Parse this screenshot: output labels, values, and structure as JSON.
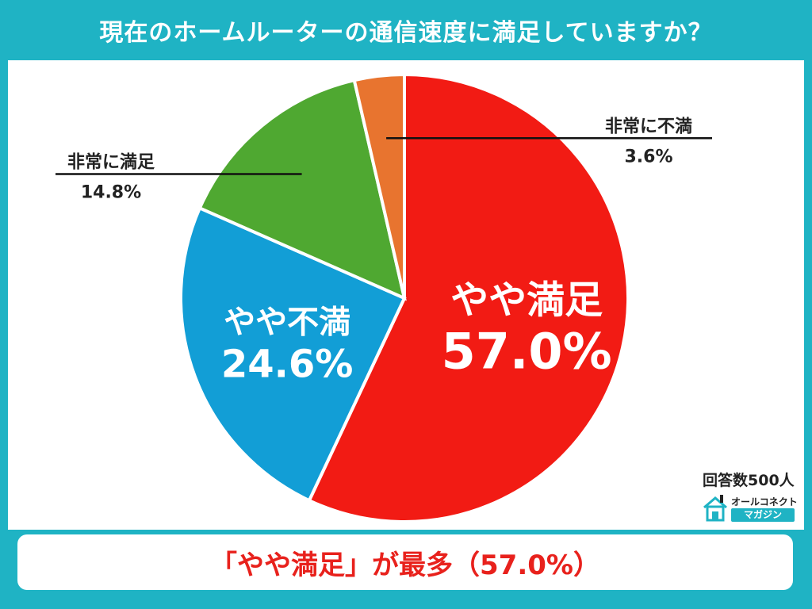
{
  "title": "現在のホームルーターの通信速度に満足していますか？",
  "chart_data": {
    "type": "pie",
    "title": "現在のホームルーターの通信速度に満足していますか？",
    "unit": "%",
    "slices": [
      {
        "label": "やや満足",
        "value": 57.0,
        "value_text": "57.0%",
        "color": "#f21b14",
        "label_position": "inside"
      },
      {
        "label": "やや不満",
        "value": 24.6,
        "value_text": "24.6%",
        "color": "#129ed6",
        "label_position": "inside"
      },
      {
        "label": "非常に満足",
        "value": 14.8,
        "value_text": "14.8%",
        "color": "#4fa831",
        "label_position": "outside-left"
      },
      {
        "label": "非常に不満",
        "value": 3.6,
        "value_text": "3.6%",
        "color": "#e8742f",
        "label_position": "outside-right"
      }
    ],
    "start": "12 o'clock",
    "direction": "clockwise"
  },
  "respondents": "回答数500人",
  "logo": {
    "top_text": "オールコネクト",
    "bottom_text": "マガジン",
    "icon": "house-icon"
  },
  "conclusion": "「やや満足」が最多（57.0%）",
  "colors": {
    "background": "#1fb3c4",
    "accent": "#e8211c"
  }
}
